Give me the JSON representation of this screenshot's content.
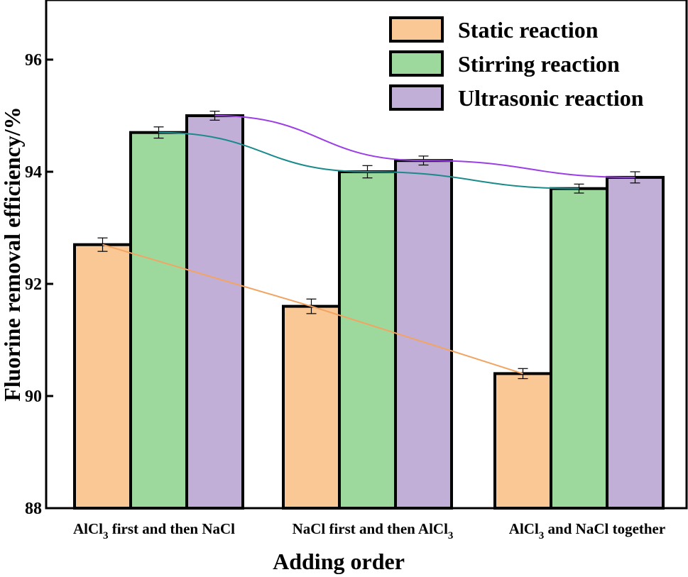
{
  "chart_data": {
    "type": "bar",
    "xlabel": "Adding order",
    "ylabel": "Fluorine removal efficiency/%",
    "ylim": [
      88,
      97
    ],
    "yticks": [
      88,
      90,
      92,
      94,
      96
    ],
    "categories": [
      {
        "main": "AlCl",
        "sub": "3",
        "rest": " first and then NaCl",
        "text": "AlCl3 first and then NaCl"
      },
      {
        "main": "NaCl first and then AlCl",
        "sub": "3",
        "rest": "",
        "text": "NaCl first and then AlCl3"
      },
      {
        "main": "AlCl",
        "sub": "3",
        "rest": " and NaCl together",
        "text": "AlCl3 and NaCl together"
      }
    ],
    "series": [
      {
        "name": "Static reaction",
        "color": "#f9c894",
        "line_color": "#f2a463",
        "values": [
          92.7,
          91.6,
          90.4
        ],
        "errors": [
          0.12,
          0.13,
          0.09
        ]
      },
      {
        "name": "Stirring reaction",
        "color": "#9dd99c",
        "line_color": "#1a8a8a",
        "values": [
          94.7,
          94.0,
          93.7
        ],
        "errors": [
          0.1,
          0.11,
          0.08
        ]
      },
      {
        "name": "Ultrasonic reaction",
        "color": "#c2afd8",
        "line_color": "#9b3ee6",
        "values": [
          95.0,
          94.2,
          93.9
        ],
        "errors": [
          0.08,
          0.08,
          0.1
        ]
      }
    ],
    "legend_position": "top-right",
    "grid": false
  }
}
